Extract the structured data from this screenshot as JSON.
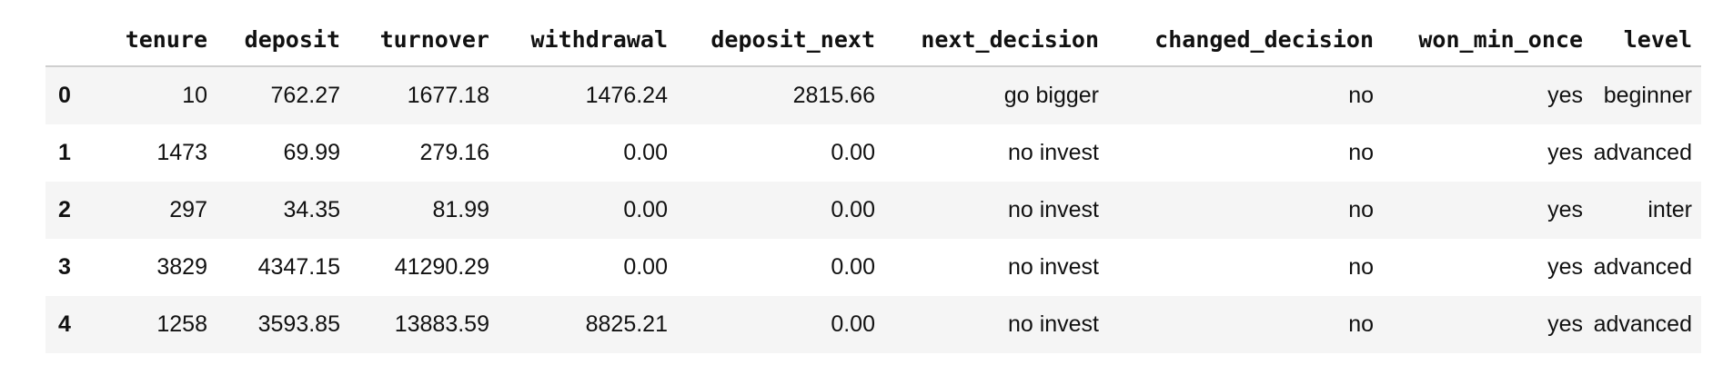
{
  "dataframe": {
    "columns": [
      "tenure",
      "deposit",
      "turnover",
      "withdrawal",
      "deposit_next",
      "next_decision",
      "changed_decision",
      "won_min_once",
      "level"
    ],
    "rows": [
      {
        "index": "0",
        "cells": [
          "10",
          "762.27",
          "1677.18",
          "1476.24",
          "2815.66",
          "go bigger",
          "no",
          "yes",
          "beginner"
        ]
      },
      {
        "index": "1",
        "cells": [
          "1473",
          "69.99",
          "279.16",
          "0.00",
          "0.00",
          "no invest",
          "no",
          "yes",
          "advanced"
        ]
      },
      {
        "index": "2",
        "cells": [
          "297",
          "34.35",
          "81.99",
          "0.00",
          "0.00",
          "no invest",
          "no",
          "yes",
          "inter"
        ]
      },
      {
        "index": "3",
        "cells": [
          "3829",
          "4347.15",
          "41290.29",
          "0.00",
          "0.00",
          "no invest",
          "no",
          "yes",
          "advanced"
        ]
      },
      {
        "index": "4",
        "cells": [
          "1258",
          "3593.85",
          "13883.59",
          "8825.21",
          "0.00",
          "no invest",
          "no",
          "yes",
          "advanced"
        ]
      }
    ]
  },
  "colors": {
    "stripe": "#f5f5f5",
    "header_rule": "#cfcfcf",
    "text": "#111111"
  }
}
